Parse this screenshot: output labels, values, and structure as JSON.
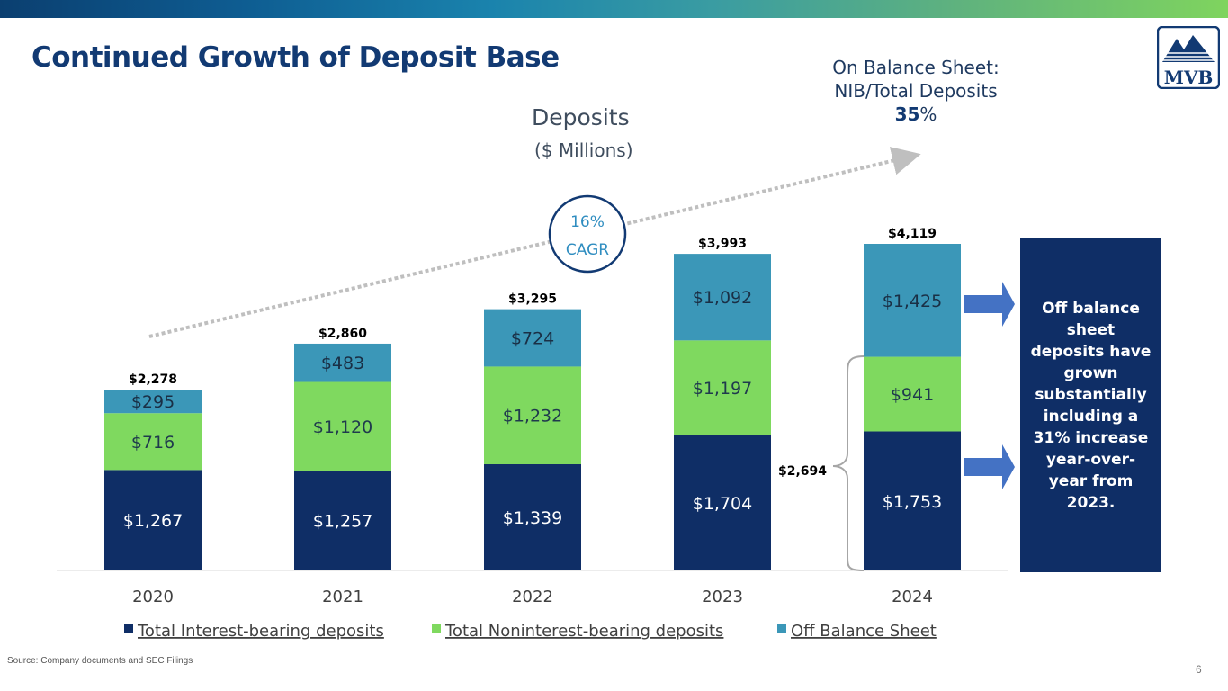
{
  "title": "Continued Growth of Deposit Base",
  "logo": {
    "text": "MVB"
  },
  "on_balance": {
    "line1": "On Balance Sheet:",
    "line2": "NIB/Total Deposits",
    "pct_number": "35",
    "pct_sign": "%"
  },
  "cagr": {
    "pct": "16%",
    "label": "CAGR"
  },
  "callout": {
    "text": "Off balance sheet deposits have grown substantially including a 31% increase year-over-year from 2023.",
    "bracket_label": "$2,694"
  },
  "source": "Source: Company documents and SEC Filings",
  "page_number": "6",
  "colors": {
    "interest": "#0f2e66",
    "noninterest": "#7fd95f",
    "offbalance": "#3b97b8",
    "arrow": "#4472c4",
    "title": "#123a73"
  },
  "chart_data": {
    "type": "bar",
    "stacked": true,
    "title": "Deposits",
    "subtitle": "($ Millions)",
    "categories": [
      "2020",
      "2021",
      "2022",
      "2023",
      "2024"
    ],
    "series": [
      {
        "name": "Total Interest-bearing deposits",
        "values": [
          1267,
          1257,
          1339,
          1704,
          1753
        ],
        "labels": [
          "$1,267",
          "$1,257",
          "$1,339",
          "$1,704",
          "$1,753"
        ],
        "color": "#0f2e66",
        "label_color": "#ffffff"
      },
      {
        "name": "Total Noninterest-bearing deposits",
        "values": [
          716,
          1120,
          1232,
          1197,
          941
        ],
        "labels": [
          "$716",
          "$1,120",
          "$1,232",
          "$1,197",
          "$941"
        ],
        "color": "#7fd95f",
        "label_color": "#1f3a4d"
      },
      {
        "name": "Off Balance Sheet",
        "values": [
          295,
          483,
          724,
          1092,
          1425
        ],
        "labels": [
          "$295",
          "$483",
          "$724",
          "$1,092",
          "$1,425"
        ],
        "color": "#3b97b8",
        "label_color": "#1a2f45"
      }
    ],
    "totals": [
      "$2,278",
      "$2,860",
      "$3,295",
      "$3,993",
      "$4,119"
    ],
    "ylim": [
      0,
      4119
    ],
    "grid": false,
    "legend_position": "bottom"
  }
}
